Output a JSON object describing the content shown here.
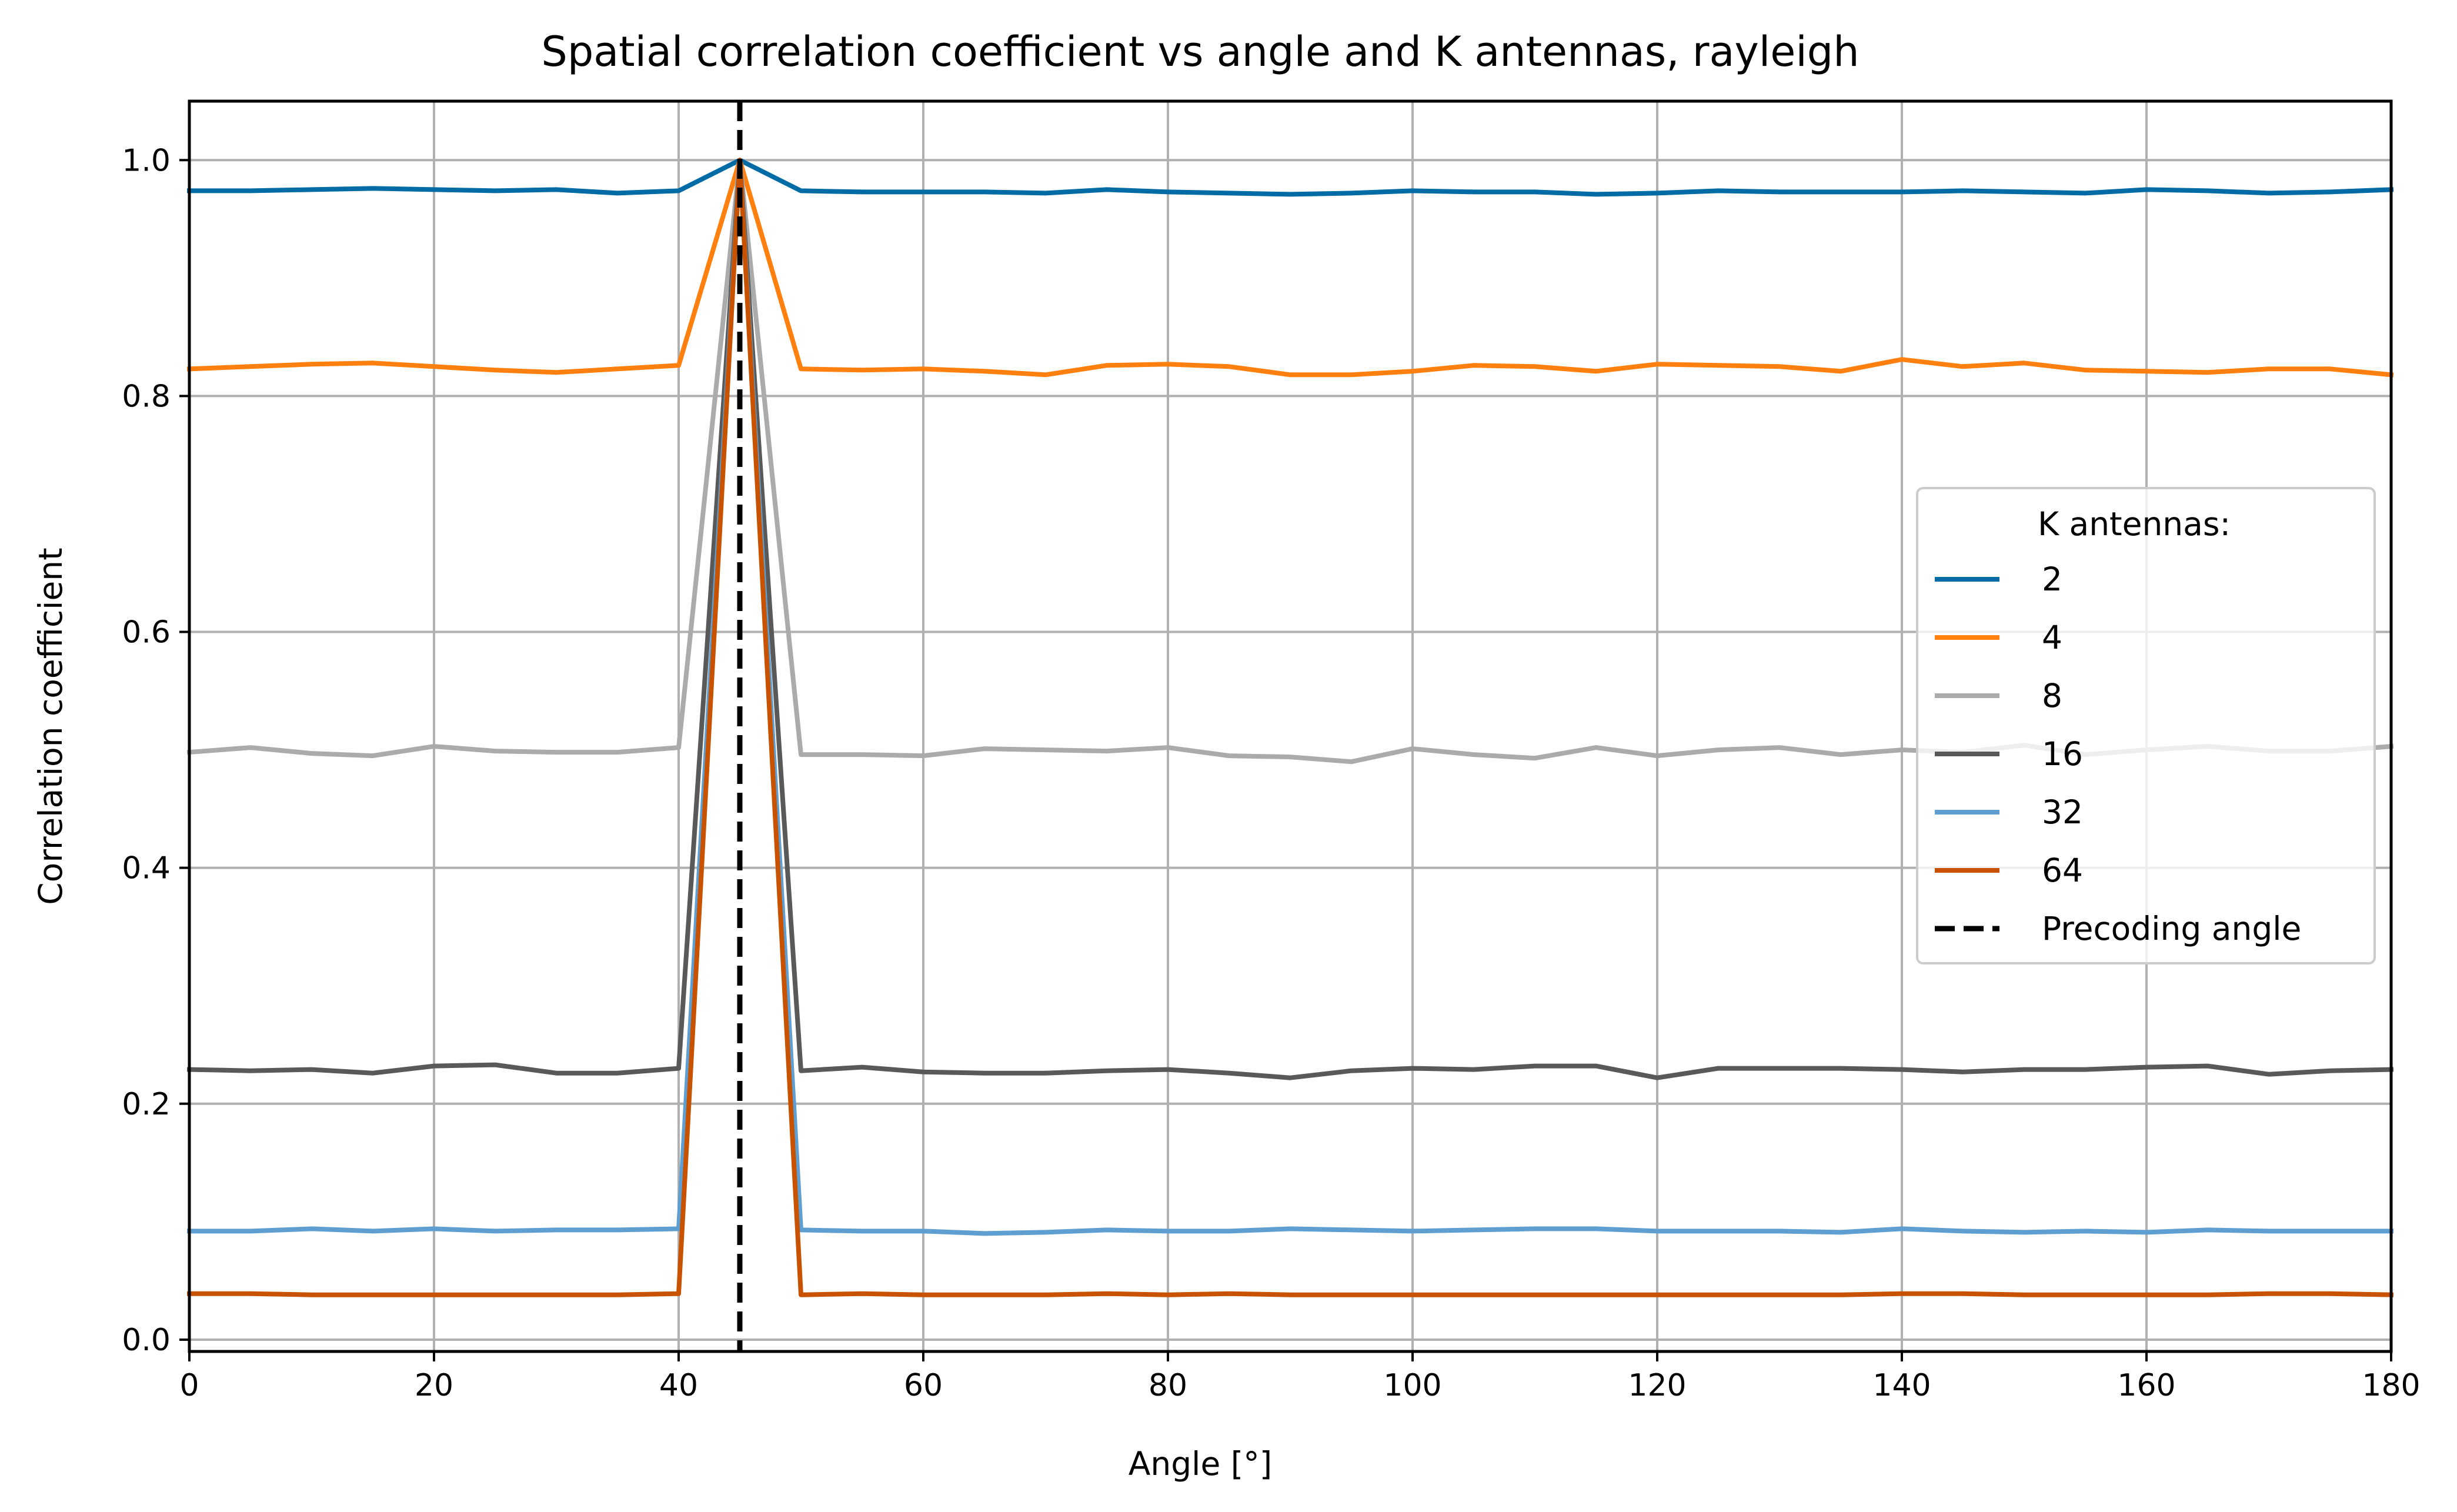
{
  "chart_data": {
    "type": "line",
    "title": "Spatial correlation coefficient vs angle and K antennas, rayleigh",
    "xlabel": "Angle [°]",
    "ylabel": "Correlation coefficient",
    "xlim": [
      0,
      180
    ],
    "ylim": [
      -0.01,
      1.05
    ],
    "xticks": [
      0,
      20,
      40,
      60,
      80,
      100,
      120,
      140,
      160,
      180
    ],
    "xtick_labels": [
      "0",
      "20",
      "40",
      "60",
      "80",
      "100",
      "120",
      "140",
      "160",
      "180"
    ],
    "yticks": [
      0.0,
      0.2,
      0.4,
      0.6,
      0.8,
      1.0
    ],
    "ytick_labels": [
      "0.0",
      "0.2",
      "0.4",
      "0.6",
      "0.8",
      "1.0"
    ],
    "grid": true,
    "legend": {
      "title": "K antennas:",
      "placement": "center-right"
    },
    "x": [
      0,
      5,
      10,
      15,
      20,
      25,
      30,
      35,
      40,
      45,
      50,
      55,
      60,
      65,
      70,
      75,
      80,
      85,
      90,
      95,
      100,
      105,
      110,
      115,
      120,
      125,
      130,
      135,
      140,
      145,
      150,
      155,
      160,
      165,
      170,
      175,
      180
    ],
    "series": [
      {
        "name": "2",
        "color": "#006BA4",
        "values": [
          0.974,
          0.974,
          0.975,
          0.976,
          0.975,
          0.974,
          0.975,
          0.972,
          0.974,
          1.0,
          0.974,
          0.973,
          0.973,
          0.973,
          0.972,
          0.975,
          0.973,
          0.972,
          0.971,
          0.972,
          0.974,
          0.973,
          0.973,
          0.971,
          0.972,
          0.974,
          0.973,
          0.973,
          0.973,
          0.974,
          0.973,
          0.972,
          0.975,
          0.974,
          0.972,
          0.973,
          0.975
        ]
      },
      {
        "name": "4",
        "color": "#FF800E",
        "values": [
          0.823,
          0.825,
          0.827,
          0.828,
          0.825,
          0.822,
          0.82,
          0.823,
          0.826,
          1.0,
          0.823,
          0.822,
          0.823,
          0.821,
          0.818,
          0.826,
          0.827,
          0.825,
          0.818,
          0.818,
          0.821,
          0.826,
          0.825,
          0.821,
          0.827,
          0.826,
          0.825,
          0.821,
          0.831,
          0.825,
          0.828,
          0.822,
          0.821,
          0.82,
          0.823,
          0.823,
          0.818
        ]
      },
      {
        "name": "8",
        "color": "#ABABAB",
        "values": [
          0.498,
          0.502,
          0.497,
          0.495,
          0.503,
          0.499,
          0.498,
          0.498,
          0.502,
          1.0,
          0.496,
          0.496,
          0.495,
          0.501,
          0.5,
          0.499,
          0.502,
          0.495,
          0.494,
          0.49,
          0.501,
          0.496,
          0.493,
          0.502,
          0.495,
          0.5,
          0.502,
          0.496,
          0.5,
          0.498,
          0.504,
          0.496,
          0.5,
          0.503,
          0.499,
          0.499,
          0.503
        ]
      },
      {
        "name": "16",
        "color": "#595959",
        "values": [
          0.229,
          0.228,
          0.229,
          0.226,
          0.232,
          0.233,
          0.226,
          0.226,
          0.23,
          1.0,
          0.228,
          0.231,
          0.227,
          0.226,
          0.226,
          0.228,
          0.229,
          0.226,
          0.222,
          0.228,
          0.23,
          0.229,
          0.232,
          0.232,
          0.222,
          0.23,
          0.23,
          0.23,
          0.229,
          0.227,
          0.229,
          0.229,
          0.231,
          0.232,
          0.225,
          0.228,
          0.229
        ]
      },
      {
        "name": "32",
        "color": "#5F9ED1",
        "values": [
          0.092,
          0.092,
          0.094,
          0.092,
          0.094,
          0.092,
          0.093,
          0.093,
          0.094,
          1.0,
          0.093,
          0.092,
          0.092,
          0.09,
          0.091,
          0.093,
          0.092,
          0.092,
          0.094,
          0.093,
          0.092,
          0.093,
          0.094,
          0.094,
          0.092,
          0.092,
          0.092,
          0.091,
          0.094,
          0.092,
          0.091,
          0.092,
          0.091,
          0.093,
          0.092,
          0.092,
          0.092
        ]
      },
      {
        "name": "64",
        "color": "#C85200",
        "values": [
          0.039,
          0.039,
          0.038,
          0.038,
          0.038,
          0.038,
          0.038,
          0.038,
          0.039,
          1.0,
          0.038,
          0.039,
          0.038,
          0.038,
          0.038,
          0.039,
          0.038,
          0.039,
          0.038,
          0.038,
          0.038,
          0.038,
          0.038,
          0.038,
          0.038,
          0.038,
          0.038,
          0.038,
          0.039,
          0.039,
          0.038,
          0.038,
          0.038,
          0.038,
          0.039,
          0.039,
          0.038
        ]
      }
    ],
    "vline": {
      "name": "Precoding angle",
      "x": 45,
      "color": "#000000",
      "style": "dashed"
    }
  }
}
